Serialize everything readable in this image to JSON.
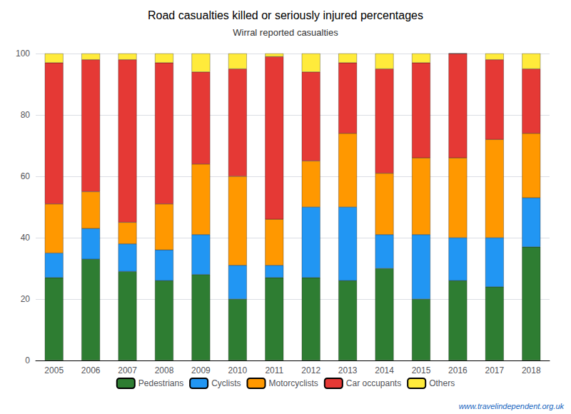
{
  "chart_data": {
    "type": "bar",
    "title": "Road casualties killed or seriously injured percentages",
    "subtitle": "Wirral reported casualties",
    "categories": [
      "2005",
      "2006",
      "2007",
      "2008",
      "2009",
      "2010",
      "2011",
      "2012",
      "2013",
      "2014",
      "2015",
      "2016",
      "2017",
      "2018"
    ],
    "series": [
      {
        "name": "Pedestrians",
        "color": "#2e7d32",
        "values": [
          27,
          33,
          29,
          26,
          28,
          20,
          27,
          27,
          26,
          30,
          20,
          26,
          24,
          37
        ]
      },
      {
        "name": "Cyclists",
        "color": "#2196f3",
        "values": [
          8,
          10,
          9,
          10,
          13,
          11,
          4,
          23,
          24,
          11,
          21,
          14,
          16,
          16
        ]
      },
      {
        "name": "Motorcyclists",
        "color": "#ff9800",
        "values": [
          16,
          12,
          7,
          15,
          23,
          29,
          15,
          15,
          24,
          20,
          25,
          26,
          32,
          21
        ]
      },
      {
        "name": "Car occupants",
        "color": "#e53935",
        "values": [
          46,
          43,
          53,
          46,
          30,
          35,
          53,
          29,
          23,
          34,
          31,
          34,
          26,
          21
        ]
      },
      {
        "name": "Others",
        "color": "#ffeb3b",
        "values": [
          3,
          2,
          2,
          3,
          6,
          5,
          1,
          6,
          3,
          5,
          3,
          0,
          2,
          5
        ]
      }
    ],
    "stacked": true,
    "ylim": [
      0,
      100
    ],
    "yticks": [
      0,
      20,
      40,
      60,
      80,
      100
    ],
    "grid": true,
    "legend": "bottom",
    "annotations": [
      {
        "text": "www.travelindependent.org.uk",
        "color": "#1565c0"
      }
    ]
  }
}
